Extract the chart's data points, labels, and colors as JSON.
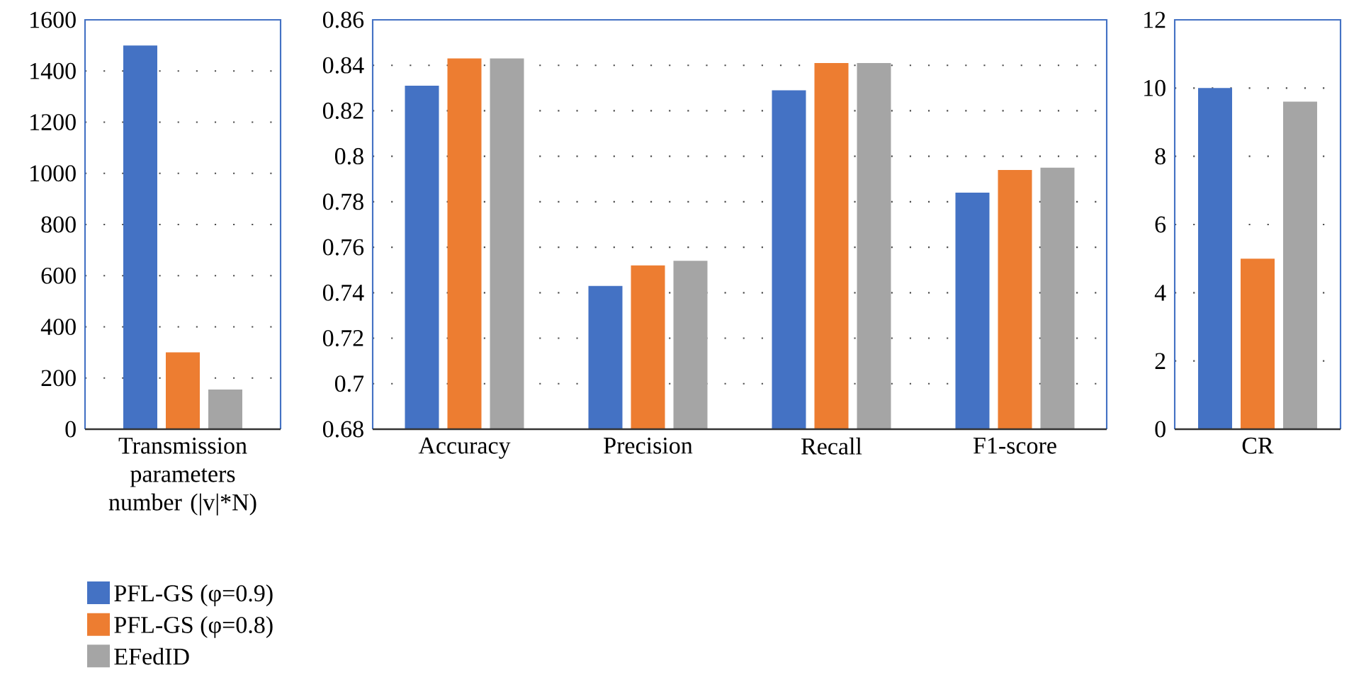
{
  "chart_data": [
    {
      "type": "bar",
      "categories": [
        "Transmission parameters number (|v|*N)"
      ],
      "series": [
        {
          "name": "PFL-GS (φ=0.9)",
          "color": "#4472c4",
          "values": [
            1500
          ]
        },
        {
          "name": "PFL-GS (φ=0.8)",
          "color": "#ed7d31",
          "values": [
            300
          ]
        },
        {
          "name": "EFedID",
          "color": "#a5a5a5",
          "values": [
            155
          ]
        }
      ],
      "ylim": [
        0,
        1600
      ],
      "yticks": [
        0,
        200,
        400,
        600,
        800,
        1000,
        1200,
        1400,
        1600
      ],
      "grid": "y",
      "legend": "bottom left"
    },
    {
      "type": "bar",
      "categories": [
        "Accuracy",
        "Precision",
        "Recall",
        "F1-score"
      ],
      "series": [
        {
          "color": "#4472c4",
          "values": [
            0.831,
            0.743,
            0.829,
            0.784
          ]
        },
        {
          "color": "#ed7d31",
          "values": [
            0.843,
            0.752,
            0.841,
            0.794
          ]
        },
        {
          "color": "#a5a5a5",
          "values": [
            0.843,
            0.754,
            0.841,
            0.795
          ]
        }
      ],
      "ylim": [
        0.68,
        0.86
      ],
      "yticks": [
        0.68,
        0.7,
        0.72,
        0.74,
        0.76,
        0.78,
        0.8,
        0.82,
        0.84,
        0.86
      ],
      "grid": "y"
    },
    {
      "type": "bar",
      "categories": [
        "CR"
      ],
      "series": [
        {
          "color": "#4472c4",
          "values": [
            10
          ]
        },
        {
          "color": "#ed7d31",
          "values": [
            5
          ]
        },
        {
          "color": "#a5a5a5",
          "values": [
            9.6
          ]
        }
      ],
      "ylim": [
        0,
        12
      ],
      "yticks": [
        0,
        2,
        4,
        6,
        8,
        10,
        12
      ],
      "grid": "y"
    }
  ]
}
